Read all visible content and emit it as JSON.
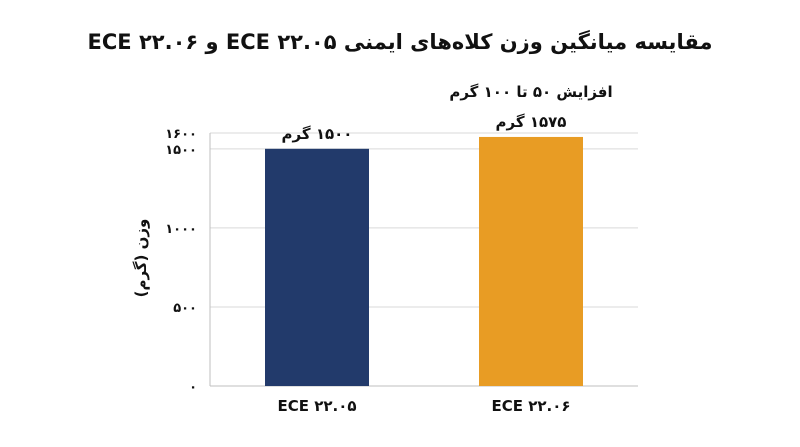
{
  "chart_data": {
    "type": "bar",
    "title": "مقایسه میانگین وزن کلاه‌های ایمنی ECE ۲۲.۰۵ و ECE ۲۲.۰۶",
    "ylabel": "وزن (گرم)",
    "xlabel": "",
    "categories": [
      "ECE ۲۲.۰۵",
      "ECE ۲۲.۰۶"
    ],
    "values": [
      1500,
      1575
    ],
    "data_labels": [
      "۱۵۰۰ گرم",
      "۱۵۷۵ گرم"
    ],
    "annotation": "افزایش ۵۰ تا ۱۰۰ گرم",
    "colors": [
      "#223a6b",
      "#e89c24"
    ],
    "ylim": [
      0,
      1600
    ],
    "y_ticks": [
      0,
      500,
      1000,
      1500,
      1600
    ],
    "y_tick_labels": [
      "۰",
      "۵۰۰",
      "۱۰۰۰",
      "۱۵۰۰",
      "۱۶۰۰"
    ],
    "grid": true,
    "legend": "none"
  }
}
